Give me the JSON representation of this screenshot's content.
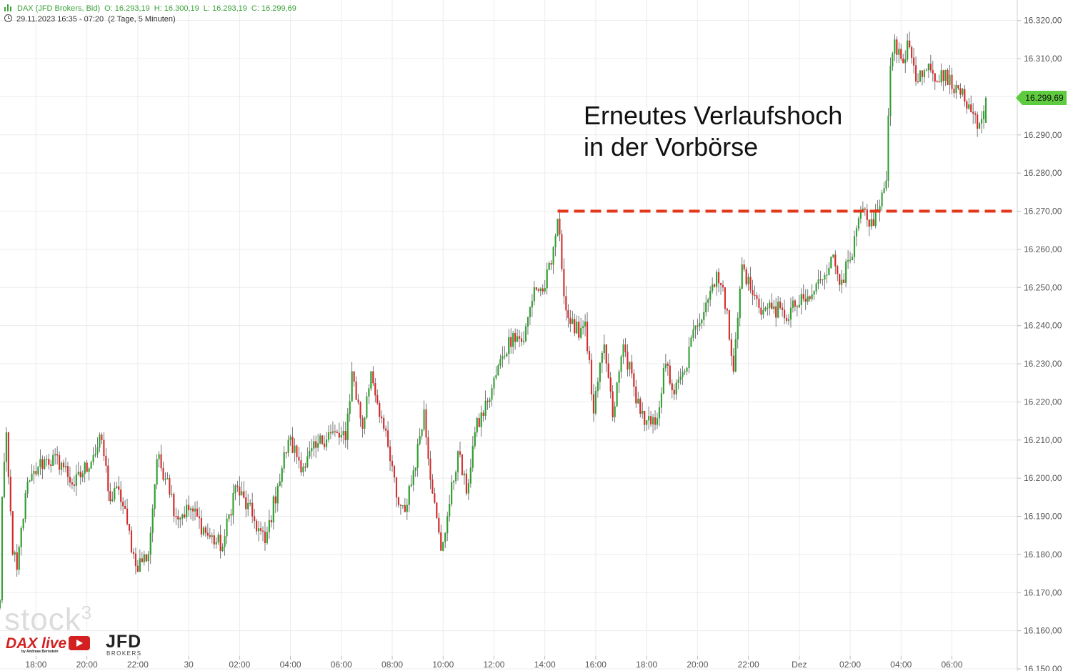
{
  "header": {
    "instrument": "DAX (JFD Brokers, Bid)",
    "open": "O: 16.293,19",
    "high": "H: 16.300,19",
    "low": "L: 16.293,19",
    "close": "C: 16.299,69",
    "period": "29.11.2023 16:35 - 07:20",
    "interval": "(2 Tage, 5 Minuten)"
  },
  "annotation": "Erneutes Verlaufshoch\nin der Vorbörse",
  "current_price_label": "16.299,69",
  "watermark": "stock",
  "watermark_sup": "3",
  "logos": {
    "dax_live": "DAX live",
    "dax_sub": "by Andreas Bernstein",
    "jfd": "JFD",
    "jfd_sub": "BROKERS"
  },
  "colors": {
    "up": "#2e9e2e",
    "down": "#d42a2a",
    "resistance": "#e3361b",
    "grid": "#ececec",
    "price_tag": "#5fcb3e"
  },
  "chart_data": {
    "type": "candlestick",
    "interval": "5 Minuten",
    "ylim": [
      16150,
      16325
    ],
    "y_ticks": [
      {
        "value": 16320,
        "label": "16.320,00"
      },
      {
        "value": 16310,
        "label": "16.310,00"
      },
      {
        "value": 16300,
        "label": "16.300,00"
      },
      {
        "value": 16290,
        "label": "16.290,00"
      },
      {
        "value": 16280,
        "label": "16.280,00"
      },
      {
        "value": 16270,
        "label": "16.270,00"
      },
      {
        "value": 16260,
        "label": "16.260,00"
      },
      {
        "value": 16250,
        "label": "16.250,00"
      },
      {
        "value": 16240,
        "label": "16.240,00"
      },
      {
        "value": 16230,
        "label": "16.230,00"
      },
      {
        "value": 16220,
        "label": "16.220,00"
      },
      {
        "value": 16210,
        "label": "16.210,00"
      },
      {
        "value": 16200,
        "label": "16.200,00"
      },
      {
        "value": 16190,
        "label": "16.190,00"
      },
      {
        "value": 16180,
        "label": "16.180,00"
      },
      {
        "value": 16170,
        "label": "16.170,00"
      },
      {
        "value": 16160,
        "label": "16.160,00"
      },
      {
        "value": 16150,
        "label": "16.150,00"
      }
    ],
    "x_ticks": [
      {
        "time": "29.11.2023 18:00",
        "label": "18:00"
      },
      {
        "time": "29.11.2023 20:00",
        "label": "20:00"
      },
      {
        "time": "29.11.2023 22:00",
        "label": "22:00"
      },
      {
        "time": "30.11.2023 00:00",
        "label": "30"
      },
      {
        "time": "30.11.2023 02:00",
        "label": "02:00"
      },
      {
        "time": "30.11.2023 04:00",
        "label": "04:00"
      },
      {
        "time": "30.11.2023 06:00",
        "label": "06:00"
      },
      {
        "time": "30.11.2023 08:00",
        "label": "08:00"
      },
      {
        "time": "30.11.2023 10:00",
        "label": "10:00"
      },
      {
        "time": "30.11.2023 12:00",
        "label": "12:00"
      },
      {
        "time": "30.11.2023 14:00",
        "label": "14:00"
      },
      {
        "time": "30.11.2023 16:00",
        "label": "16:00"
      },
      {
        "time": "30.11.2023 18:00",
        "label": "18:00"
      },
      {
        "time": "30.11.2023 20:00",
        "label": "20:00"
      },
      {
        "time": "30.11.2023 22:00",
        "label": "22:00"
      },
      {
        "time": "01.12.2023 00:00",
        "label": "Dez"
      },
      {
        "time": "01.12.2023 02:00",
        "label": "02:00"
      },
      {
        "time": "01.12.2023 04:00",
        "label": "04:00"
      },
      {
        "time": "01.12.2023 06:00",
        "label": "06:00"
      }
    ],
    "start_time": "29.11.2023 16:35",
    "end_time": "01.12.2023 07:20",
    "close_anchors": [
      {
        "t": "29.11.2023 16:35",
        "close": 16168
      },
      {
        "t": "29.11.2023 16:40",
        "close": 16195
      },
      {
        "t": "29.11.2023 16:50",
        "close": 16212
      },
      {
        "t": "29.11.2023 17:05",
        "close": 16180
      },
      {
        "t": "29.11.2023 17:15",
        "close": 16176
      },
      {
        "t": "29.11.2023 17:35",
        "close": 16196
      },
      {
        "t": "29.11.2023 18:05",
        "close": 16203
      },
      {
        "t": "29.11.2023 18:25",
        "close": 16205
      },
      {
        "t": "29.11.2023 19:00",
        "close": 16204
      },
      {
        "t": "29.11.2023 19:30",
        "close": 16198
      },
      {
        "t": "29.11.2023 20:15",
        "close": 16206
      },
      {
        "t": "29.11.2023 20:35",
        "close": 16210
      },
      {
        "t": "29.11.2023 20:55",
        "close": 16194
      },
      {
        "t": "29.11.2023 21:15",
        "close": 16197
      },
      {
        "t": "29.11.2023 21:35",
        "close": 16188
      },
      {
        "t": "29.11.2023 21:55",
        "close": 16177
      },
      {
        "t": "29.11.2023 22:25",
        "close": 16180
      },
      {
        "t": "29.11.2023 22:45",
        "close": 16205
      },
      {
        "t": "29.11.2023 23:10",
        "close": 16200
      },
      {
        "t": "29.11.2023 23:30",
        "close": 16190
      },
      {
        "t": "30.11.2023 00:05",
        "close": 16192
      },
      {
        "t": "30.11.2023 00:45",
        "close": 16185
      },
      {
        "t": "30.11.2023 01:20",
        "close": 16182
      },
      {
        "t": "30.11.2023 01:50",
        "close": 16198
      },
      {
        "t": "30.11.2023 02:30",
        "close": 16190
      },
      {
        "t": "30.11.2023 03:00",
        "close": 16183
      },
      {
        "t": "30.11.2023 03:30",
        "close": 16198
      },
      {
        "t": "30.11.2023 03:55",
        "close": 16210
      },
      {
        "t": "30.11.2023 04:30",
        "close": 16203
      },
      {
        "t": "30.11.2023 05:00",
        "close": 16208
      },
      {
        "t": "30.11.2023 05:30",
        "close": 16212
      },
      {
        "t": "30.11.2023 06:10",
        "close": 16210
      },
      {
        "t": "30.11.2023 06:25",
        "close": 16228
      },
      {
        "t": "30.11.2023 06:50",
        "close": 16213
      },
      {
        "t": "30.11.2023 07:10",
        "close": 16228
      },
      {
        "t": "30.11.2023 07:40",
        "close": 16213
      },
      {
        "t": "30.11.2023 08:15",
        "close": 16193
      },
      {
        "t": "30.11.2023 08:35",
        "close": 16193
      },
      {
        "t": "30.11.2023 08:50",
        "close": 16202
      },
      {
        "t": "30.11.2023 09:15",
        "close": 16218
      },
      {
        "t": "30.11.2023 09:35",
        "close": 16196
      },
      {
        "t": "30.11.2023 09:55",
        "close": 16181
      },
      {
        "t": "30.11.2023 10:10",
        "close": 16190
      },
      {
        "t": "30.11.2023 10:35",
        "close": 16207
      },
      {
        "t": "30.11.2023 10:55",
        "close": 16196
      },
      {
        "t": "30.11.2023 11:15",
        "close": 16212
      },
      {
        "t": "30.11.2023 11:45",
        "close": 16220
      },
      {
        "t": "30.11.2023 12:20",
        "close": 16232
      },
      {
        "t": "30.11.2023 12:45",
        "close": 16238
      },
      {
        "t": "30.11.2023 13:10",
        "close": 16236
      },
      {
        "t": "30.11.2023 13:35",
        "close": 16250
      },
      {
        "t": "30.11.2023 13:55",
        "close": 16249
      },
      {
        "t": "30.11.2023 14:15",
        "close": 16256
      },
      {
        "t": "30.11.2023 14:30",
        "close": 16268
      },
      {
        "t": "30.11.2023 14:50",
        "close": 16244
      },
      {
        "t": "30.11.2023 15:10",
        "close": 16238
      },
      {
        "t": "30.11.2023 15:35",
        "close": 16241
      },
      {
        "t": "30.11.2023 15:55",
        "close": 16217
      },
      {
        "t": "30.11.2023 16:20",
        "close": 16235
      },
      {
        "t": "30.11.2023 16:40",
        "close": 16216
      },
      {
        "t": "30.11.2023 17:05",
        "close": 16235
      },
      {
        "t": "30.11.2023 17:30",
        "close": 16224
      },
      {
        "t": "30.11.2023 17:55",
        "close": 16214
      },
      {
        "t": "30.11.2023 18:20",
        "close": 16214
      },
      {
        "t": "30.11.2023 18:45",
        "close": 16230
      },
      {
        "t": "30.11.2023 19:05",
        "close": 16222
      },
      {
        "t": "30.11.2023 19:30",
        "close": 16228
      },
      {
        "t": "30.11.2023 19:55",
        "close": 16240
      },
      {
        "t": "30.11.2023 20:20",
        "close": 16246
      },
      {
        "t": "30.11.2023 20:45",
        "close": 16254
      },
      {
        "t": "30.11.2023 21:10",
        "close": 16244
      },
      {
        "t": "30.11.2023 21:25",
        "close": 16228
      },
      {
        "t": "30.11.2023 21:45",
        "close": 16256
      },
      {
        "t": "30.11.2023 22:10",
        "close": 16248
      },
      {
        "t": "30.11.2023 22:35",
        "close": 16244
      },
      {
        "t": "30.11.2023 23:00",
        "close": 16245
      },
      {
        "t": "30.11.2023 23:25",
        "close": 16242
      },
      {
        "t": "30.11.2023 23:50",
        "close": 16245
      },
      {
        "t": "01.12.2023 00:25",
        "close": 16247
      },
      {
        "t": "01.12.2023 00:50",
        "close": 16252
      },
      {
        "t": "01.12.2023 01:15",
        "close": 16258
      },
      {
        "t": "01.12.2023 01:40",
        "close": 16252
      },
      {
        "t": "01.12.2023 02:05",
        "close": 16258
      },
      {
        "t": "01.12.2023 02:25",
        "close": 16270
      },
      {
        "t": "01.12.2023 02:45",
        "close": 16266
      },
      {
        "t": "01.12.2023 03:05",
        "close": 16270
      },
      {
        "t": "01.12.2023 03:25",
        "close": 16278
      },
      {
        "t": "01.12.2023 03:35",
        "close": 16308
      },
      {
        "t": "01.12.2023 03:45",
        "close": 16315
      },
      {
        "t": "01.12.2023 04:00",
        "close": 16310
      },
      {
        "t": "01.12.2023 04:20",
        "close": 16313
      },
      {
        "t": "01.12.2023 04:40",
        "close": 16304
      },
      {
        "t": "01.12.2023 05:00",
        "close": 16307
      },
      {
        "t": "01.12.2023 05:20",
        "close": 16304
      },
      {
        "t": "01.12.2023 05:45",
        "close": 16307
      },
      {
        "t": "01.12.2023 06:05",
        "close": 16301
      },
      {
        "t": "01.12.2023 06:25",
        "close": 16302
      },
      {
        "t": "01.12.2023 06:45",
        "close": 16296
      },
      {
        "t": "01.12.2023 07:05",
        "close": 16293
      },
      {
        "t": "01.12.2023 07:20",
        "close": 16299.69
      }
    ],
    "last_candle": {
      "open": 16293.19,
      "high": 16300.19,
      "low": 16293.19,
      "close": 16299.69
    },
    "resistance_line": {
      "value": 16270,
      "from": "30.11.2023 14:30",
      "style": "dashed"
    },
    "grid": true
  }
}
